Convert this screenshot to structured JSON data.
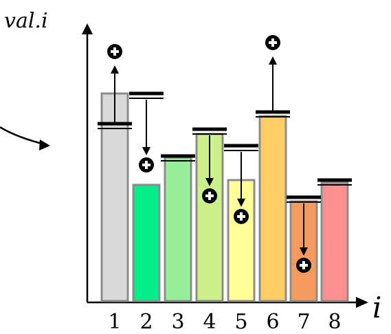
{
  "diagram": {
    "y_axis_label": "val.i",
    "x_axis_label": "i",
    "columns": [
      {
        "label": "1",
        "color": "#d9d9d9",
        "marker_direction": "up"
      },
      {
        "label": "2",
        "color": "#00ee88",
        "marker_direction": "down"
      },
      {
        "label": "3",
        "color": "#99ee99",
        "marker_direction": "none"
      },
      {
        "label": "4",
        "color": "#ccf08a",
        "marker_direction": "down"
      },
      {
        "label": "5",
        "color": "#ffff99",
        "marker_direction": "down"
      },
      {
        "label": "6",
        "color": "#ffcc66",
        "marker_direction": "up"
      },
      {
        "label": "7",
        "color": "#f59a5e",
        "marker_direction": "down"
      },
      {
        "label": "8",
        "color": "#ff9090",
        "marker_direction": "none"
      }
    ],
    "plus_symbol": "+",
    "icons": {
      "plus": "plus-circle-icon",
      "incoming": "curved-arrow-icon"
    }
  }
}
